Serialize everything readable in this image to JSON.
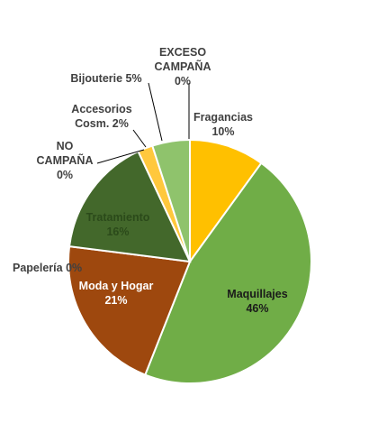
{
  "chart_data": {
    "type": "pie",
    "title": "",
    "legend": "none",
    "slices": [
      {
        "label_lines": [
          "Fragancias"
        ],
        "pct_label": "10%",
        "value": 10,
        "color": "#FFC000",
        "label_color": "#404040"
      },
      {
        "label_lines": [
          "Maquillajes"
        ],
        "pct_label": "46%",
        "value": 46,
        "color": "#70AD47",
        "label_color": "#1a1a1a"
      },
      {
        "label_lines": [
          "Moda y Hogar"
        ],
        "pct_label": "21%",
        "value": 21,
        "color": "#9E480E",
        "label_color": "#ffffff"
      },
      {
        "label_lines": [
          "Papelería"
        ],
        "pct_label": "0%",
        "value": 0,
        "color": "#C55A11",
        "label_color": "#404040"
      },
      {
        "label_lines": [
          "Tratamiento"
        ],
        "pct_label": "16%",
        "value": 16,
        "color": "#43682B",
        "label_color": "#2b4a1a"
      },
      {
        "label_lines": [
          "NO",
          "CAMPAÑA"
        ],
        "pct_label": "0%",
        "value": 0,
        "color": "#A5A5A5",
        "label_color": "#404040"
      },
      {
        "label_lines": [
          "Accesorios",
          "Cosm."
        ],
        "pct_label": "2%",
        "value": 2,
        "color": "#FFC83D",
        "label_color": "#404040"
      },
      {
        "label_lines": [
          "Bijouterie"
        ],
        "pct_label": "5%",
        "value": 5,
        "color": "#8FC36C",
        "label_color": "#404040"
      },
      {
        "label_lines": [
          "EXCESO",
          "CAMPAÑA"
        ],
        "pct_label": "0%",
        "value": 0,
        "color": "#BFBFBF",
        "label_color": "#404040"
      }
    ]
  }
}
